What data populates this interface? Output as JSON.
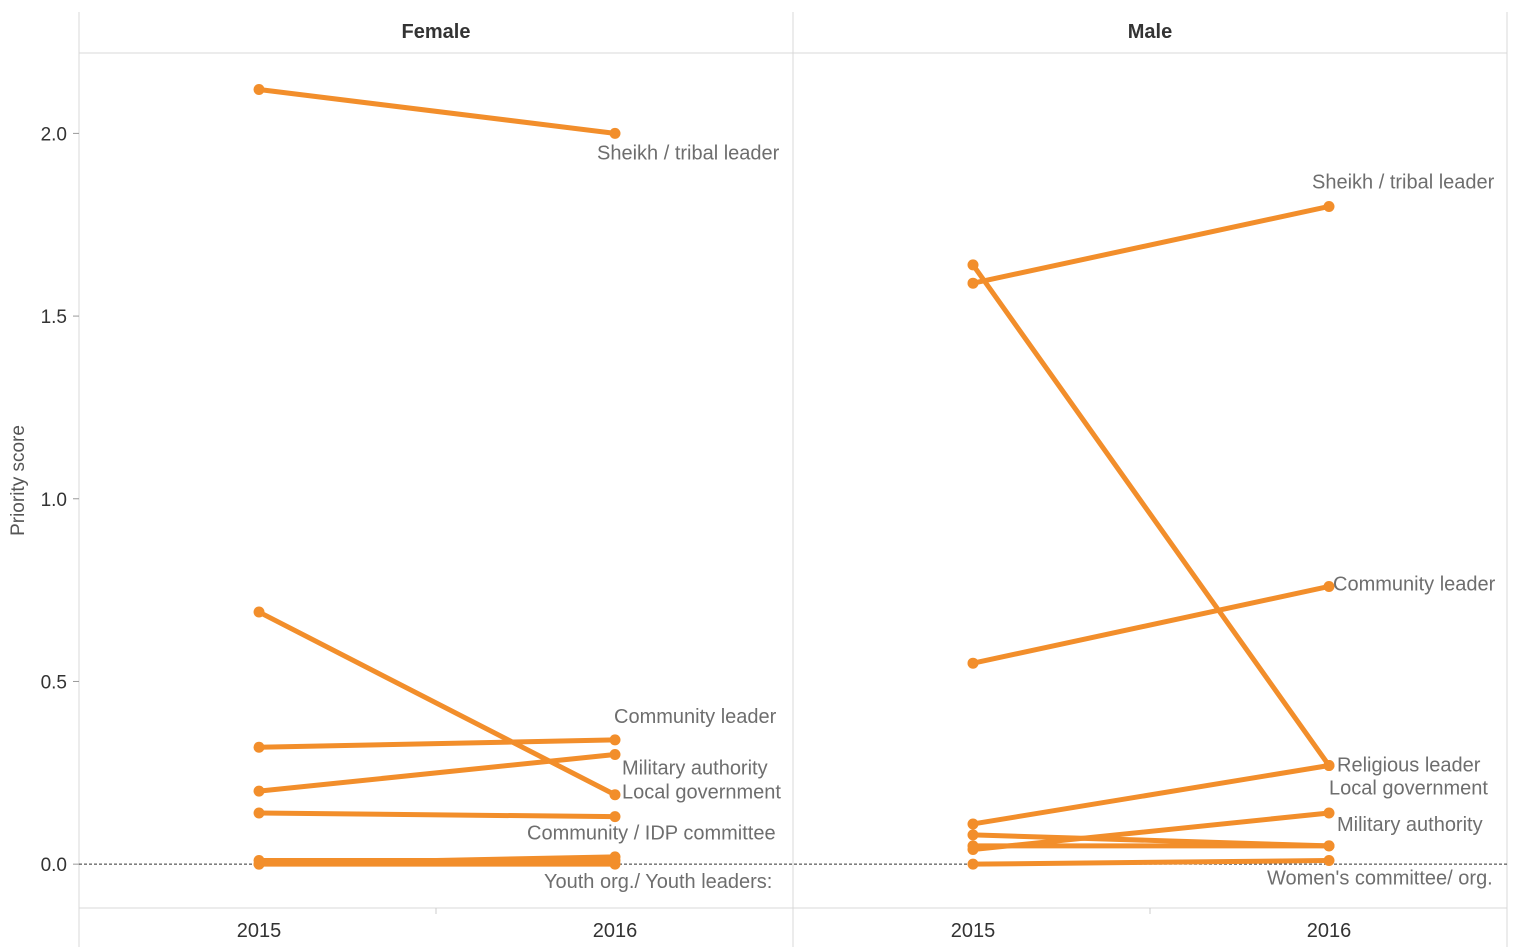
{
  "chart_data": {
    "type": "line",
    "ylabel": "Priority score",
    "ylim": [
      -0.12,
      2.22
    ],
    "y_ticks": [
      "0.0",
      "0.5",
      "1.0",
      "1.5",
      "2.0"
    ],
    "x_categories": [
      "2015",
      "2016"
    ],
    "zero_line": "dashed",
    "line_color": "#f28e2b",
    "panels": [
      {
        "title": "Female",
        "series": [
          {
            "name": "Sheikh / tribal leader",
            "values": [
              2.12,
              2.0
            ]
          },
          {
            "name": "Community leader",
            "values": [
              0.32,
              0.34
            ]
          },
          {
            "name": "Military authority",
            "values": [
              0.2,
              0.3
            ]
          },
          {
            "name": "Local government",
            "values": [
              0.69,
              0.19
            ]
          },
          {
            "name": "Community / IDP committee",
            "values": [
              0.14,
              0.13
            ]
          },
          {
            "name": "Youth org./ Youth leaders:",
            "values": [
              0.0,
              0.0
            ]
          },
          {
            "name": "",
            "values": [
              0.0,
              0.02
            ]
          },
          {
            "name": "",
            "values": [
              0.01,
              0.01
            ]
          }
        ]
      },
      {
        "title": "Male",
        "series": [
          {
            "name": "Sheikh / tribal leader",
            "values": [
              1.59,
              1.8
            ]
          },
          {
            "name": "Community leader",
            "values": [
              0.55,
              0.76
            ]
          },
          {
            "name": "Religious leader",
            "values": [
              1.64,
              0.27
            ]
          },
          {
            "name": "Local government",
            "values": [
              0.11,
              0.27
            ]
          },
          {
            "name": "",
            "values": [
              0.04,
              0.14
            ]
          },
          {
            "name": "Military authority",
            "values": [
              0.08,
              0.05
            ]
          },
          {
            "name": "",
            "values": [
              0.05,
              0.05
            ]
          },
          {
            "name": "Women's committee/ org.",
            "values": [
              0.0,
              0.01
            ]
          }
        ]
      }
    ]
  }
}
